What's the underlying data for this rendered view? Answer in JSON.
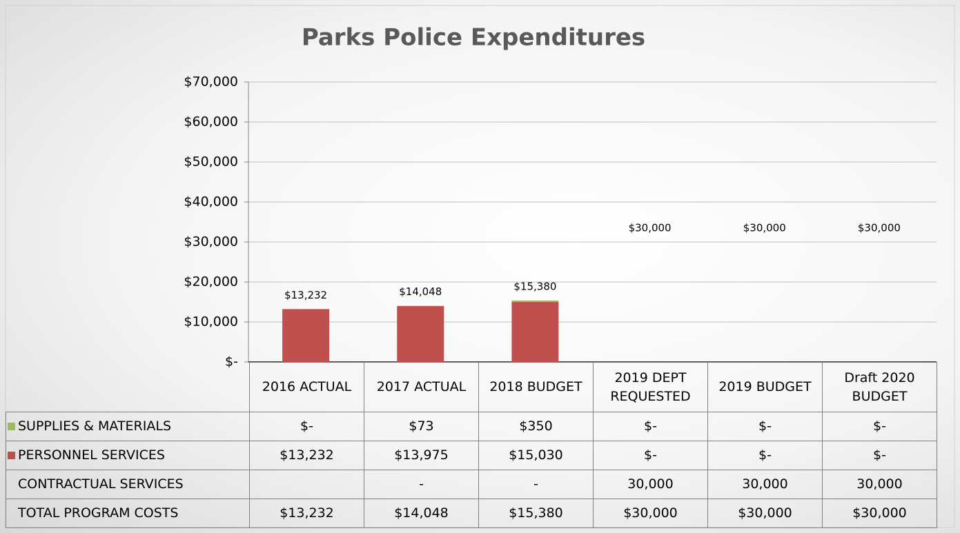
{
  "chart_data": {
    "type": "bar",
    "title": "Parks Police Expenditures",
    "categories": [
      "2016 ACTUAL",
      "2017 ACTUAL",
      "2018 BUDGET",
      "2019 DEPT REQUESTED",
      "2019 BUDGET",
      "Draft 2020 BUDGET"
    ],
    "series": [
      {
        "name": "SUPPLIES & MATERIALS",
        "color": "#9bbb59",
        "values": [
          0,
          73,
          350,
          0,
          0,
          0
        ],
        "value_labels": [
          "$-",
          "$73",
          "$350",
          "$-",
          "$-",
          "$-"
        ]
      },
      {
        "name": "PERSONNEL SERVICES",
        "color": "#c0504d",
        "values": [
          13232,
          13975,
          15030,
          0,
          0,
          0
        ],
        "value_labels": [
          "$13,232",
          "$13,975",
          "$15,030",
          "$-",
          "$-",
          "$-"
        ]
      },
      {
        "name": "CONTRACTUAL SERVICES",
        "values": [
          null,
          0,
          0,
          30000,
          30000,
          30000
        ],
        "value_labels": [
          null,
          "-",
          "-",
          "30,000",
          "30,000",
          "30,000"
        ]
      },
      {
        "name": "TOTAL PROGRAM COSTS",
        "values": [
          13232,
          14048,
          15380,
          30000,
          30000,
          30000
        ],
        "value_labels": [
          "$13,232",
          "$14,048",
          "$15,380",
          "$30,000",
          "$30,000",
          "$30,000"
        ]
      }
    ],
    "ylim": [
      0,
      70000
    ],
    "yticks": [
      {
        "value": 0,
        "label": "$-"
      },
      {
        "value": 10000,
        "label": "$10,000"
      },
      {
        "value": 20000,
        "label": "$20,000"
      },
      {
        "value": 30000,
        "label": "$30,000"
      },
      {
        "value": 40000,
        "label": "$40,000"
      },
      {
        "value": 50000,
        "label": "$50,000"
      },
      {
        "value": 60000,
        "label": "$60,000"
      },
      {
        "value": 70000,
        "label": "$70,000"
      }
    ],
    "grid": true
  }
}
